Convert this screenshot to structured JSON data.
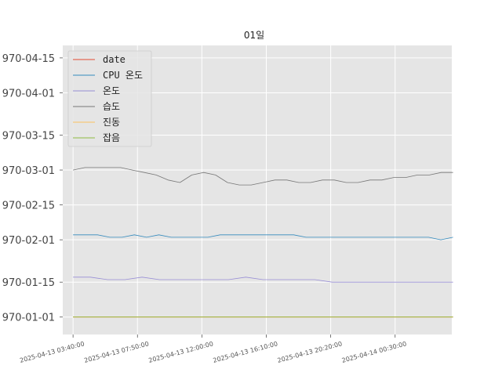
{
  "chart_data": {
    "type": "line",
    "title": "01일",
    "xlabel": "",
    "ylabel": "",
    "background_color": "#e5e5e5",
    "grid": true,
    "legend_position": "upper-left",
    "x_tick_labels": [
      "2025-04-13 03:40:00",
      "2025-04-13 07:50:00",
      "2025-04-13 12:00:00",
      "2025-04-13 16:10:00",
      "2025-04-13 20:20:00",
      "2025-04-14 00:30:00"
    ],
    "y_tick_labels": [
      "970-01-01",
      "970-01-15",
      "970-02-01",
      "970-02-15",
      "970-03-01",
      "970-03-15",
      "970-04-01",
      "970-04-15"
    ],
    "x_range": [
      "2025-04-13 03:00:00",
      "2025-04-14 04:10:00"
    ],
    "y_range": [
      "1969-12-25",
      "1970-04-20"
    ],
    "series": [
      {
        "name": "date",
        "color": "#e24a33",
        "y": [
          "1970-01-01",
          "1970-01-01",
          "1970-01-01",
          "1970-01-01",
          "1970-01-01",
          "1970-01-01",
          "1970-01-01",
          "1970-01-01"
        ]
      },
      {
        "name": "CPU 온도",
        "color": "#348abd",
        "y": [
          "1970-02-03",
          "1970-02-03",
          "1970-02-03",
          "1970-02-02",
          "1970-02-02",
          "1970-02-03",
          "1970-02-02",
          "1970-02-03",
          "1970-02-02",
          "1970-02-02",
          "1970-02-02",
          "1970-02-02",
          "1970-02-03",
          "1970-02-03",
          "1970-02-03",
          "1970-02-03",
          "1970-02-03",
          "1970-02-03",
          "1970-02-03",
          "1970-02-02",
          "1970-02-02",
          "1970-02-02",
          "1970-02-02",
          "1970-02-02",
          "1970-02-02",
          "1970-02-02",
          "1970-02-02",
          "1970-02-02",
          "1970-02-02",
          "1970-02-02",
          "1970-02-01",
          "1970-02-02"
        ]
      },
      {
        "name": "온도",
        "color": "#988ed5",
        "y": [
          "1970-01-17",
          "1970-01-17",
          "1970-01-16",
          "1970-01-16",
          "1970-01-17",
          "1970-01-16",
          "1970-01-16",
          "1970-01-16",
          "1970-01-16",
          "1970-01-16",
          "1970-01-17",
          "1970-01-16",
          "1970-01-16",
          "1970-01-16",
          "1970-01-16",
          "1970-01-15",
          "1970-01-15",
          "1970-01-15",
          "1970-01-15",
          "1970-01-15",
          "1970-01-15",
          "1970-01-15",
          "1970-01-15"
        ]
      },
      {
        "name": "습도",
        "color": "#777777",
        "y": [
          "1970-03-01",
          "1970-03-02",
          "1970-03-02",
          "1970-03-02",
          "1970-03-02",
          "1970-03-01",
          "1970-02-28",
          "1970-02-27",
          "1970-02-25",
          "1970-02-24",
          "1970-02-27",
          "1970-02-28",
          "1970-02-27",
          "1970-02-24",
          "1970-02-23",
          "1970-02-23",
          "1970-02-24",
          "1970-02-25",
          "1970-02-25",
          "1970-02-24",
          "1970-02-24",
          "1970-02-25",
          "1970-02-25",
          "1970-02-24",
          "1970-02-24",
          "1970-02-25",
          "1970-02-25",
          "1970-02-26",
          "1970-02-26",
          "1970-02-27",
          "1970-02-27",
          "1970-02-28",
          "1970-02-28"
        ]
      },
      {
        "name": "진동",
        "color": "#fbc15e",
        "y": [
          "1970-01-01",
          "1970-01-01",
          "1970-01-01",
          "1970-01-01",
          "1970-01-01",
          "1970-01-01",
          "1970-01-01",
          "1970-01-01"
        ]
      },
      {
        "name": "잡음",
        "color": "#8eba42",
        "y": [
          "1970-01-01",
          "1970-01-01",
          "1970-01-01",
          "1970-01-01",
          "1970-01-01",
          "1970-01-01",
          "1970-01-01",
          "1970-01-01"
        ]
      }
    ]
  }
}
